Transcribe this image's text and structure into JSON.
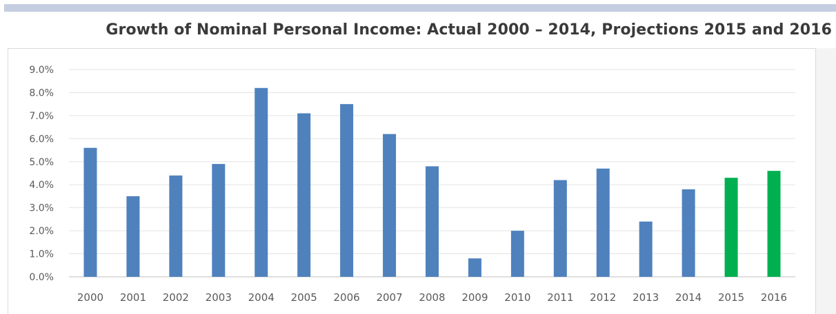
{
  "chart_data": {
    "type": "bar",
    "title": "Growth of Nominal Personal Income: Actual 2000 – 2014, Projections 2015 and 2016",
    "xlabel": "",
    "ylabel": "",
    "categories": [
      "2000",
      "2001",
      "2002",
      "2003",
      "2004",
      "2005",
      "2006",
      "2007",
      "2008",
      "2009",
      "2010",
      "2011",
      "2012",
      "2013",
      "2014",
      "2015",
      "2016"
    ],
    "values": [
      5.6,
      3.5,
      4.4,
      4.9,
      8.2,
      7.1,
      7.5,
      6.2,
      4.8,
      0.8,
      2.0,
      4.2,
      4.7,
      2.4,
      3.8,
      4.3,
      4.6
    ],
    "colors": [
      "#4f81bd",
      "#4f81bd",
      "#4f81bd",
      "#4f81bd",
      "#4f81bd",
      "#4f81bd",
      "#4f81bd",
      "#4f81bd",
      "#4f81bd",
      "#4f81bd",
      "#4f81bd",
      "#4f81bd",
      "#4f81bd",
      "#4f81bd",
      "#4f81bd",
      "#00b050",
      "#00b050"
    ],
    "ylim": [
      0,
      9
    ],
    "yticks": [
      0,
      1,
      2,
      3,
      4,
      5,
      6,
      7,
      8,
      9
    ],
    "ytick_labels": [
      "0.0%",
      "1.0%",
      "2.0%",
      "3.0%",
      "4.0%",
      "5.0%",
      "6.0%",
      "7.0%",
      "8.0%",
      "9.0%"
    ],
    "grid": true,
    "legend": "none"
  }
}
